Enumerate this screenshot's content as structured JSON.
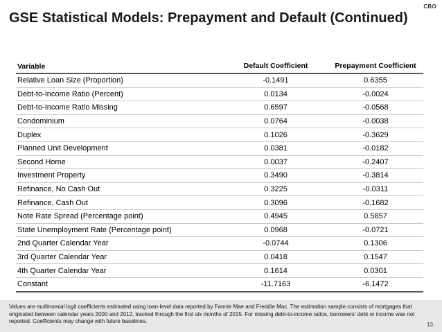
{
  "brand": "CBO",
  "title": "GSE Statistical Models: Prepayment and Default (Continued)",
  "table": {
    "headers": {
      "variable": "Variable",
      "default": "Default Coefficient",
      "prepayment": "Prepayment Coefficient"
    },
    "rows": [
      {
        "variable": "Relative Loan Size (Proportion)",
        "default": "-0.1491",
        "prepayment": "0.6355"
      },
      {
        "variable": "Debt-to-Income Ratio (Percent)",
        "default": "0.0134",
        "prepayment": "-0.0024"
      },
      {
        "variable": "Debt-to-Income Ratio Missing",
        "default": "0.6597",
        "prepayment": "-0.0568"
      },
      {
        "variable": "Condominium",
        "default": "0.0764",
        "prepayment": "-0.0038"
      },
      {
        "variable": "Duplex",
        "default": "0.1026",
        "prepayment": "-0.3629"
      },
      {
        "variable": "Planned Unit Development",
        "default": "0.0381",
        "prepayment": "-0.0182"
      },
      {
        "variable": "Second Home",
        "default": "0.0037",
        "prepayment": "-0.2407"
      },
      {
        "variable": "Investment Property",
        "default": "0.3490",
        "prepayment": "-0.3814"
      },
      {
        "variable": "Refinance, No Cash Out",
        "default": "0.3225",
        "prepayment": "-0.0311"
      },
      {
        "variable": "Refinance, Cash Out",
        "default": "0.3096",
        "prepayment": "-0.1682"
      },
      {
        "variable": "Note Rate Spread (Percentage point)",
        "default": "0.4945",
        "prepayment": "0.5857"
      },
      {
        "variable": "State Unemployment Rate (Percentage point)",
        "default": "0.0968",
        "prepayment": "-0.0721"
      },
      {
        "variable": "2nd Quarter Calendar Year",
        "default": "-0.0744",
        "prepayment": "0.1306"
      },
      {
        "variable": "3rd Quarter Calendar Year",
        "default": "0.0418",
        "prepayment": "0.1547"
      },
      {
        "variable": "4th Quarter Calendar Year",
        "default": "0.1614",
        "prepayment": "0.0301"
      },
      {
        "variable": "Constant",
        "default": "-11.7163",
        "prepayment": "-6.1472"
      }
    ]
  },
  "footnote": "Values are multinomial logit coefficients estimated using loan-level data reported by Fannie Mae and Freddie Mac. The estimation sample consists of mortgages that originated between calendar years 2000 and 2012, tracked through the first six months of 2015. For missing debt-to-income ratios, borrowers' debt or income was not reported. Coefficients may change with future baselines.",
  "page_number": "13"
}
